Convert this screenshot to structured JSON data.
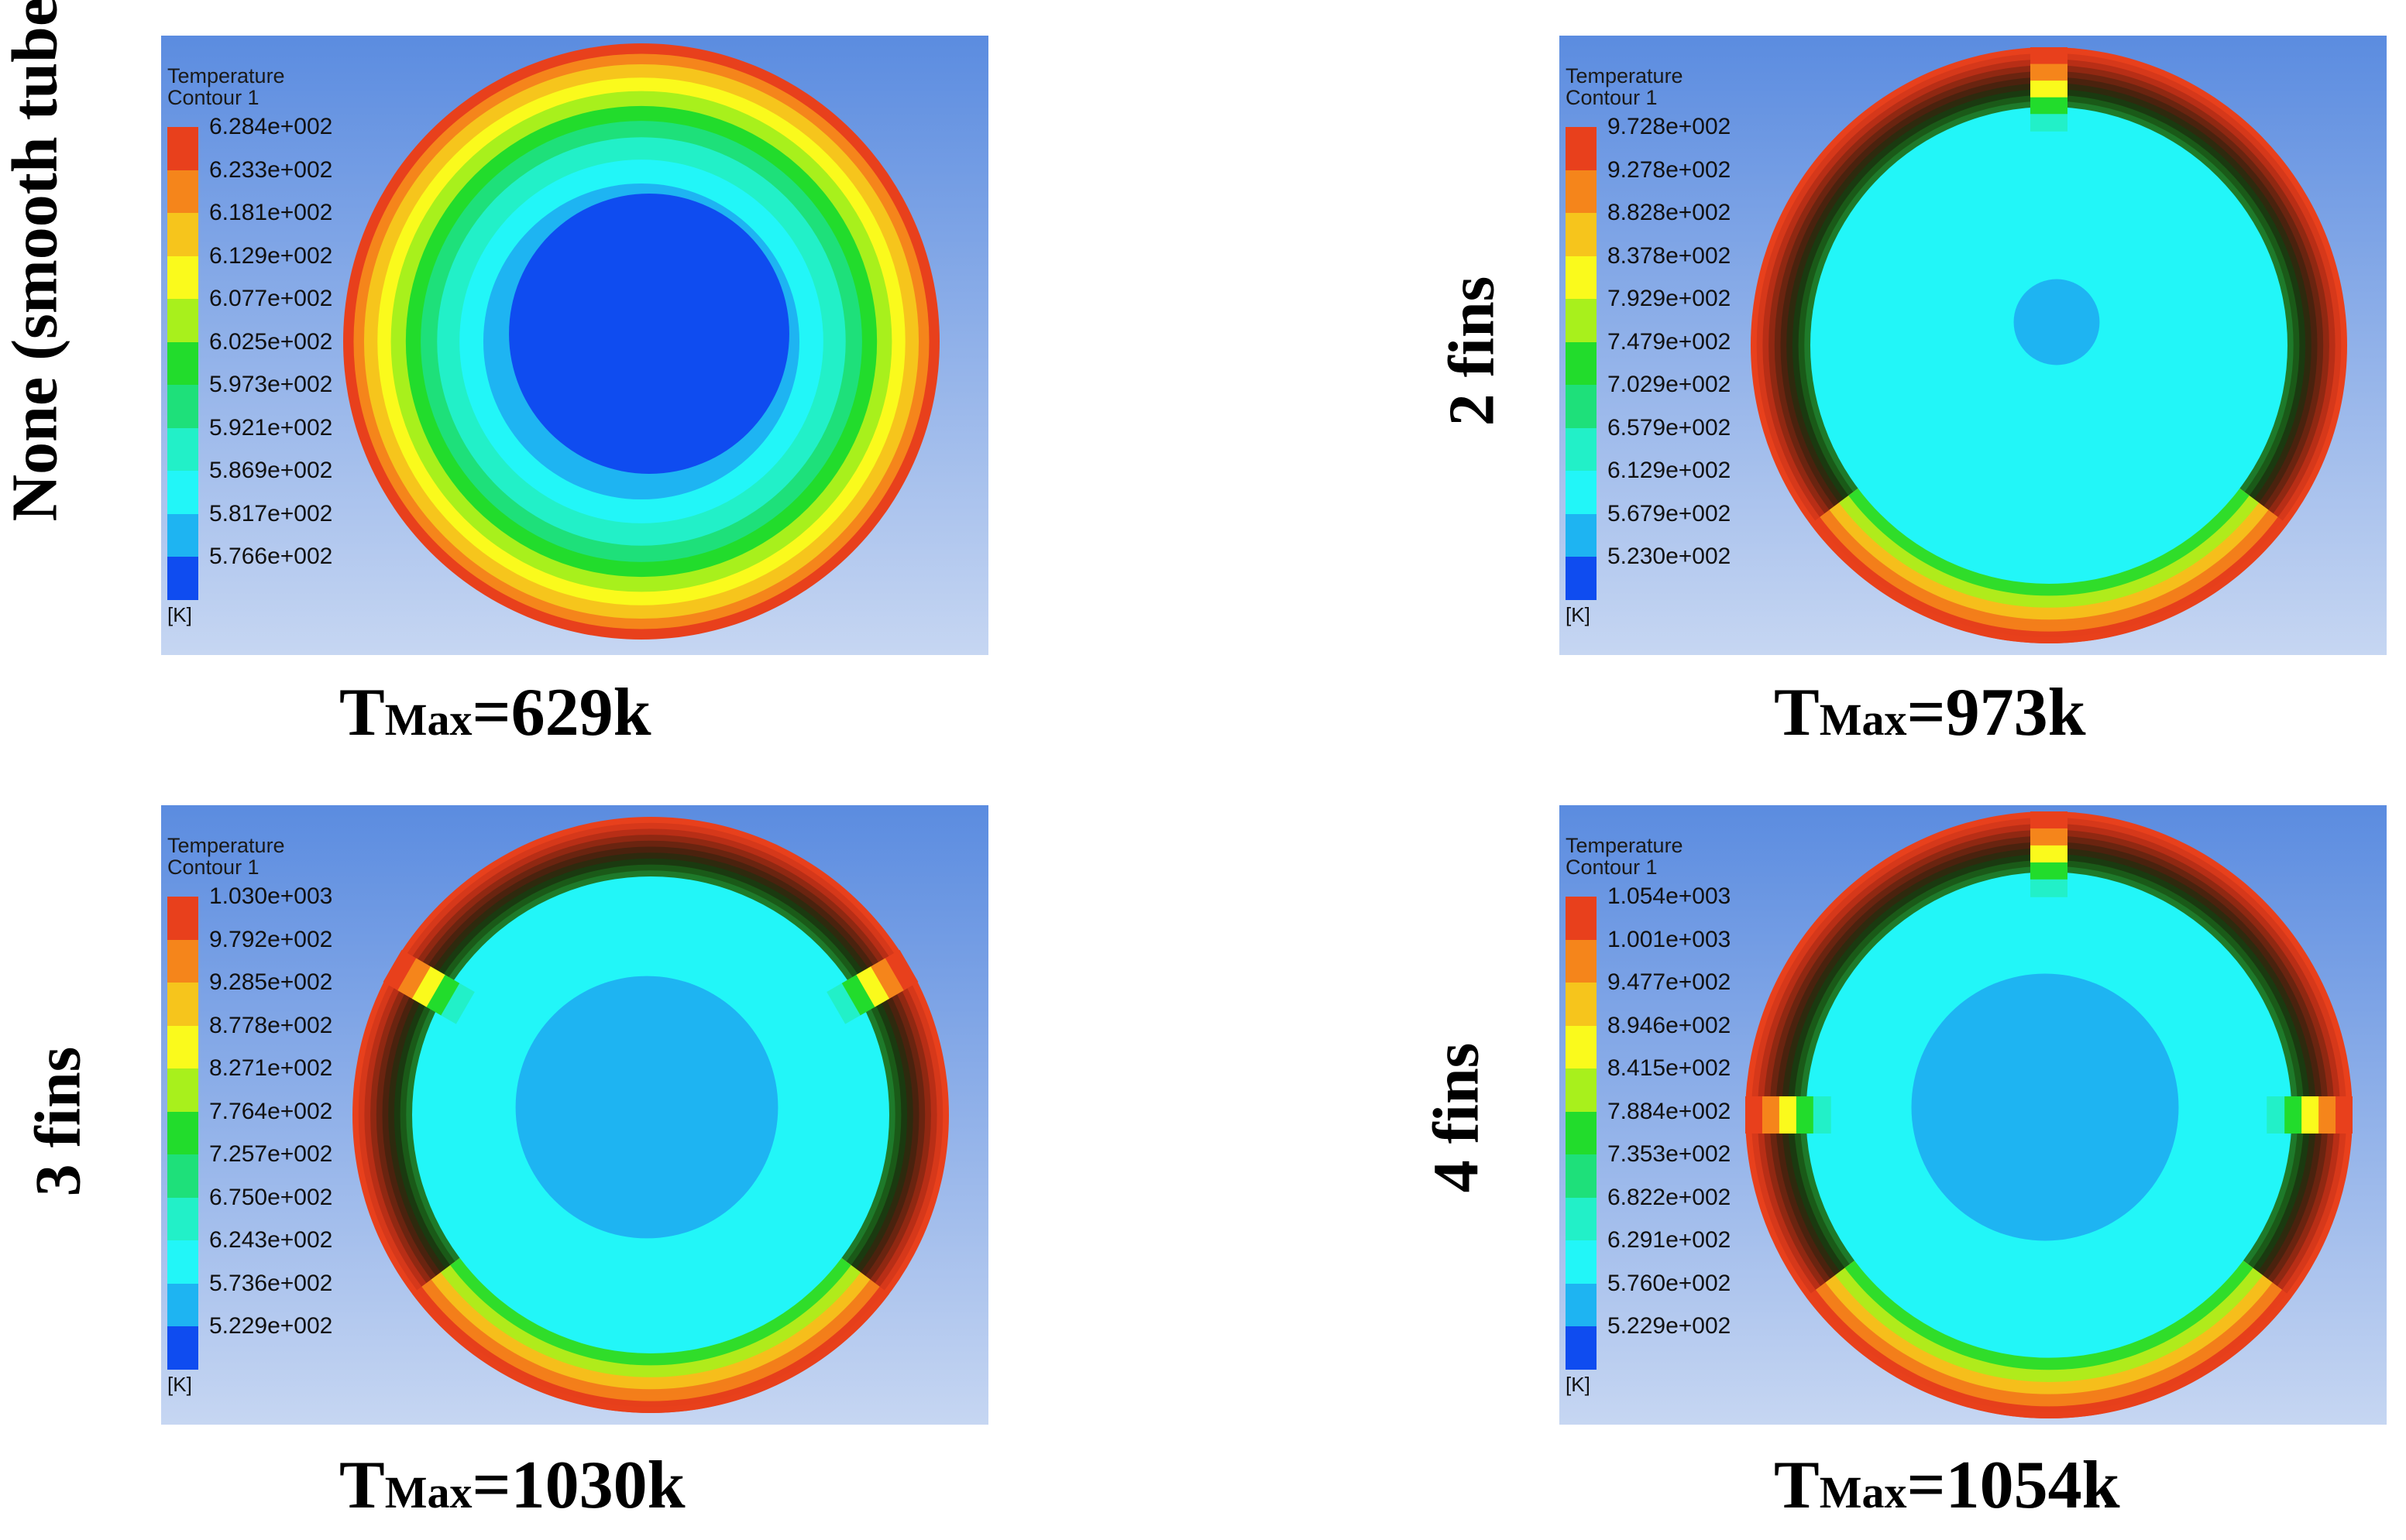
{
  "panels": [
    {
      "id": "smooth",
      "row_label": "None (smooth tube)",
      "legend": {
        "title": "Temperature",
        "subtitle": "Contour 1",
        "unit": "[K]",
        "values": [
          "6.284e+002",
          "6.233e+002",
          "6.181e+002",
          "6.129e+002",
          "6.077e+002",
          "6.025e+002",
          "5.973e+002",
          "5.921e+002",
          "5.869e+002",
          "5.817e+002",
          "5.766e+002"
        ]
      },
      "tmax": {
        "prefix": "T",
        "sub": "Max",
        "value": "=629k"
      },
      "fins": 0
    },
    {
      "id": "two-fins",
      "row_label": "2 fins",
      "legend": {
        "title": "Temperature",
        "subtitle": "Contour 1",
        "unit": "[K]",
        "values": [
          "9.728e+002",
          "9.278e+002",
          "8.828e+002",
          "8.378e+002",
          "7.929e+002",
          "7.479e+002",
          "7.029e+002",
          "6.579e+002",
          "6.129e+002",
          "5.679e+002",
          "5.230e+002"
        ]
      },
      "tmax": {
        "prefix": "T",
        "sub": "Max",
        "value": "=973k"
      },
      "fins": 2
    },
    {
      "id": "three-fins",
      "row_label": "3 fins",
      "legend": {
        "title": "Temperature",
        "subtitle": "Contour 1",
        "unit": "[K]",
        "values": [
          "1.030e+003",
          "9.792e+002",
          "9.285e+002",
          "8.778e+002",
          "8.271e+002",
          "7.764e+002",
          "7.257e+002",
          "6.750e+002",
          "6.243e+002",
          "5.736e+002",
          "5.229e+002"
        ]
      },
      "tmax": {
        "prefix": "T",
        "sub": "Max",
        "value": "=1030k"
      },
      "fins": 3
    },
    {
      "id": "four-fins",
      "row_label": "4 fins",
      "legend": {
        "title": "Temperature",
        "subtitle": "Contour 1",
        "unit": "[K]",
        "values": [
          "1.054e+003",
          "1.001e+003",
          "9.477e+002",
          "8.946e+002",
          "8.415e+002",
          "7.884e+002",
          "7.353e+002",
          "6.822e+002",
          "6.291e+002",
          "5.760e+002",
          "5.229e+002"
        ]
      },
      "tmax": {
        "prefix": "T",
        "sub": "Max",
        "value": "=1054k"
      },
      "fins": 4
    }
  ],
  "colormap": [
    "#e8401c",
    "#f5851b",
    "#f6c51c",
    "#fafa1c",
    "#a8f01c",
    "#22dc2c",
    "#1ee07a",
    "#22f0c8",
    "#22f6f8",
    "#1eb4f2",
    "#0f4cf0"
  ]
}
